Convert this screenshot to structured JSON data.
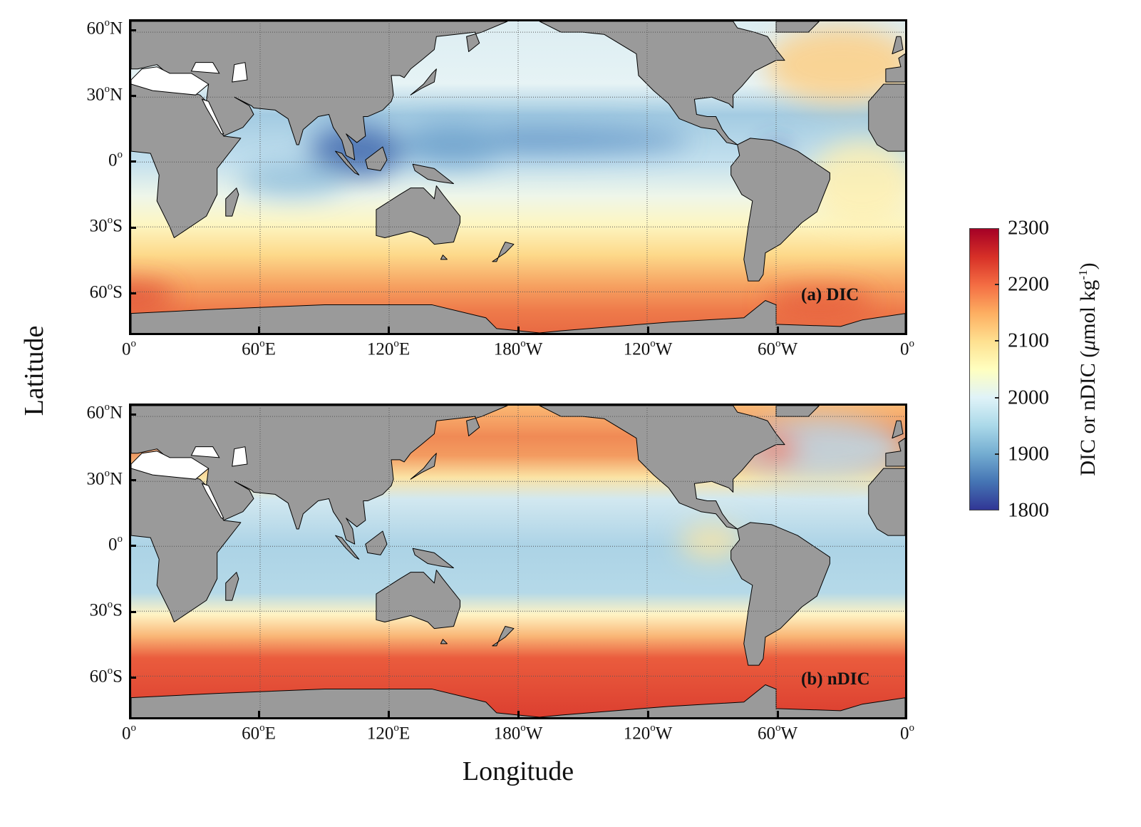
{
  "figure": {
    "y_axis_title": "Latitude",
    "x_axis_title": "Longitude",
    "degree_mark": "o",
    "lat_ticks": [
      {
        "value": 60,
        "num": "60",
        "hemi": "N"
      },
      {
        "value": 30,
        "num": "30",
        "hemi": "N"
      },
      {
        "value": 0,
        "num": "0",
        "hemi": ""
      },
      {
        "value": -30,
        "num": "30",
        "hemi": "S"
      },
      {
        "value": -60,
        "num": "60",
        "hemi": "S"
      }
    ],
    "lon_ticks": [
      {
        "value": 0,
        "num": "0",
        "hemi": ""
      },
      {
        "value": 60,
        "num": "60",
        "hemi": "E"
      },
      {
        "value": 120,
        "num": "120",
        "hemi": "E"
      },
      {
        "value": 180,
        "num": "180",
        "hemi": "W"
      },
      {
        "value": 240,
        "num": "120",
        "hemi": "W"
      },
      {
        "value": 300,
        "num": "60",
        "hemi": "W"
      },
      {
        "value": 360,
        "num": "0",
        "hemi": ""
      }
    ],
    "panels": [
      {
        "label": "(a) DIC",
        "variable": "DIC"
      },
      {
        "label": "(b) nDIC",
        "variable": "nDIC"
      }
    ],
    "land_color": "#9a9a9a",
    "colorbar": {
      "title_main": "DIC or nDIC (",
      "title_mu": "μ",
      "title_unit": "mol kg",
      "title_exp": "-1",
      "title_close": ")",
      "range": [
        1800,
        2300
      ],
      "ticks": [
        "2300",
        "2200",
        "2100",
        "2000",
        "1900",
        "1800"
      ],
      "colormap": [
        "#313695",
        "#4575b4",
        "#74add1",
        "#abd9e9",
        "#e0f3f8",
        "#ffffbf",
        "#fee090",
        "#fdae61",
        "#f46d43",
        "#d73027",
        "#a50026"
      ]
    }
  }
}
